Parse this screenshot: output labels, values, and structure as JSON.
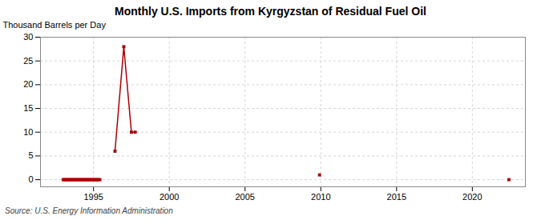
{
  "chart_data": {
    "type": "line",
    "title": "Monthly U.S. Imports from Kyrgyzstan of Residual Fuel Oil",
    "ylabel": "Thousand Barrels per Day",
    "source": "Source: U.S. Energy Information Administration",
    "x": [
      1993.0,
      1993.083,
      1993.167,
      1993.25,
      1993.333,
      1993.417,
      1993.5,
      1993.583,
      1993.667,
      1993.75,
      1993.833,
      1993.917,
      1994.0,
      1994.083,
      1994.167,
      1994.25,
      1994.333,
      1994.417,
      1994.5,
      1994.583,
      1994.667,
      1994.75,
      1994.833,
      1994.917,
      1995.0,
      1995.083,
      1995.167,
      1995.25,
      1995.333,
      1995.417,
      null,
      1996.417,
      1997.0,
      1997.5,
      1997.75,
      null,
      2009.917,
      null,
      2022.417
    ],
    "series": [
      {
        "name": "Residual Fuel Oil",
        "color": "#AA0000",
        "marker": "square",
        "line_style": "solid",
        "values": [
          0,
          0,
          0,
          0,
          0,
          0,
          0,
          0,
          0,
          0,
          0,
          0,
          0,
          0,
          0,
          0,
          0,
          0,
          0,
          0,
          0,
          0,
          0,
          0,
          0,
          0,
          0,
          0,
          0,
          0,
          null,
          6,
          28,
          10,
          10,
          null,
          1,
          null,
          0
        ]
      }
    ],
    "xlim": [
      1991.5,
      2023.5
    ],
    "ylim": [
      -1.5,
      30
    ],
    "xticks": [
      1995,
      2000,
      2005,
      2010,
      2015,
      2020
    ],
    "yticks": [
      0,
      5,
      10,
      15,
      20,
      25,
      30
    ],
    "grid": true,
    "legend": false
  }
}
